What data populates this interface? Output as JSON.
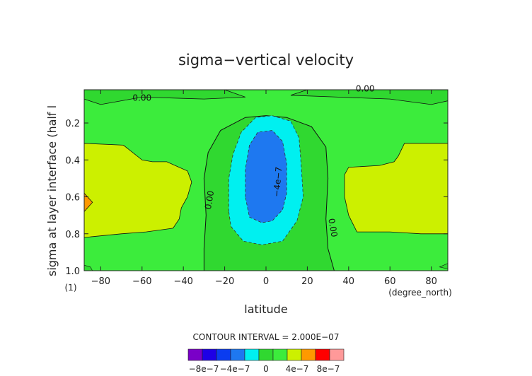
{
  "chart_data": {
    "type": "heatmap",
    "title": "sigma−vertical velocity",
    "xlabel": "latitude",
    "ylabel": "sigma at layer interface (half l",
    "x_unit_label": "(degree_north)",
    "y_unit_label": "(1)",
    "xlim": [
      -88,
      88
    ],
    "ylim": [
      1.0,
      0.02
    ],
    "x_ticks": [
      -80,
      -60,
      -40,
      -20,
      0,
      20,
      40,
      60,
      80
    ],
    "x_tick_labels": [
      "−80",
      "−60",
      "−40",
      "−20",
      "0",
      "20",
      "40",
      "60",
      "80"
    ],
    "y_ticks": [
      0.2,
      0.4,
      0.6,
      0.8,
      1.0
    ],
    "y_tick_labels": [
      "0.2",
      "0.4",
      "0.6",
      "0.8",
      "1.0"
    ],
    "contour_labels": [
      {
        "text": "0.00",
        "lat": -60,
        "sigma": 0.08
      },
      {
        "text": "0.00",
        "lat": 48,
        "sigma": 0.03
      },
      {
        "text": "0.00",
        "lat": -26,
        "sigma": 0.62
      },
      {
        "text": "−4e−7",
        "lat": 7,
        "sigma": 0.52
      },
      {
        "text": "0.00",
        "lat": 31,
        "sigma": 0.77
      }
    ],
    "contour_interval_text": "CONTOUR INTERVAL = 2.000E−07",
    "colorbar": {
      "bounds": [
        -1e-06,
        -8e-07,
        -6e-07,
        -4e-07,
        -2e-07,
        0,
        2e-07,
        4e-07,
        6e-07,
        8e-07,
        1e-06
      ],
      "colors": [
        "#7a00c8",
        "#1e00e6",
        "#0a3cf0",
        "#1e78f0",
        "#00f0f0",
        "#30d830",
        "#3cec3c",
        "#ccf000",
        "#ff9900",
        "#ff0000",
        "#ff9999"
      ],
      "tick_labels": [
        "−8e−7",
        "−4e−7",
        "0",
        "4e−7",
        "8e−7"
      ],
      "tick_values": [
        -8e-07,
        -4e-07,
        0,
        4e-07,
        8e-07
      ]
    },
    "regions": [
      {
        "level": "0 to 2e-7",
        "color": "#3cec3c",
        "description": "background"
      },
      {
        "level": "4e-7 to 6e-7",
        "color": "#ccf000",
        "description": "mid-latitude lobes"
      },
      {
        "level": "-2e-7 to 0",
        "color": "#30d830",
        "description": "equatorial band"
      },
      {
        "level": "-4e-7 to -2e-7",
        "color": "#00f0f0",
        "description": "equatorial core"
      },
      {
        "level": "-6e-7 to -4e-7",
        "color": "#1e78f0",
        "description": "equatorial minimum"
      },
      {
        "level": "6e-7 to 8e-7",
        "color": "#ff9900",
        "description": "south pole spot"
      }
    ]
  }
}
